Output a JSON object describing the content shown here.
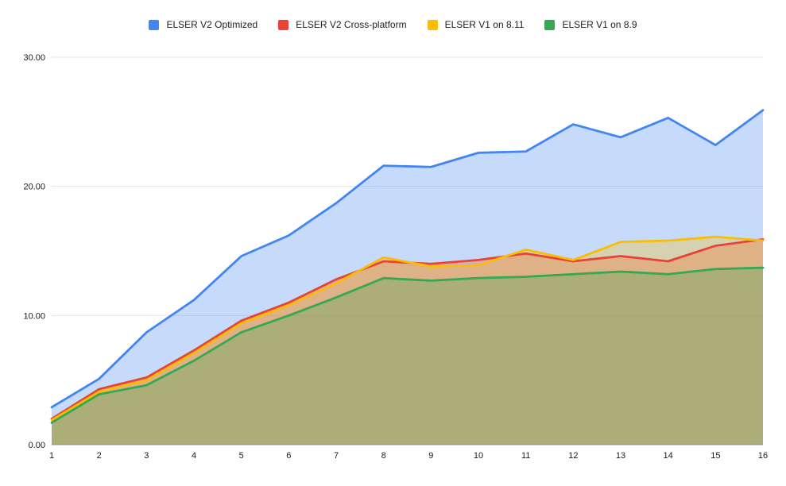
{
  "chart_data": {
    "type": "area",
    "title": "",
    "xlabel": "",
    "ylabel": "",
    "x": [
      1,
      2,
      3,
      4,
      5,
      6,
      7,
      8,
      9,
      10,
      11,
      12,
      13,
      14,
      15,
      16
    ],
    "series": [
      {
        "name": "ELSER V2 Optimized",
        "color": "#4285F4",
        "values": [
          2.9,
          5.1,
          8.7,
          11.2,
          14.6,
          16.2,
          18.7,
          21.6,
          21.5,
          22.6,
          22.7,
          24.8,
          23.8,
          25.3,
          23.2,
          25.9
        ]
      },
      {
        "name": "ELSER V2 Cross-platform",
        "color": "#EA4335",
        "values": [
          2.0,
          4.3,
          5.2,
          7.3,
          9.6,
          11.0,
          12.8,
          14.2,
          14.0,
          14.3,
          14.8,
          14.2,
          14.6,
          14.2,
          15.4,
          15.9
        ]
      },
      {
        "name": "ELSER V1 on 8.11",
        "color": "#FBBC04",
        "values": [
          1.9,
          4.1,
          5.0,
          7.1,
          9.4,
          10.8,
          12.5,
          14.5,
          13.8,
          13.9,
          15.1,
          14.3,
          15.7,
          15.8,
          16.1,
          15.8
        ]
      },
      {
        "name": "ELSER V1 on 8.9",
        "color": "#34A853",
        "values": [
          1.7,
          3.9,
          4.6,
          6.5,
          8.7,
          10.0,
          11.4,
          12.9,
          12.7,
          12.9,
          13.0,
          13.2,
          13.4,
          13.2,
          13.6,
          13.7
        ]
      }
    ],
    "y_ticks": [
      "0.00",
      "10.00",
      "20.00",
      "30.00"
    ],
    "ylim": [
      0,
      30
    ],
    "grid": true,
    "legend_position": "top",
    "fill_opacity": 0.3,
    "line_width": 2.8,
    "background": "#ffffff",
    "gridline_color": "#e6e6e6",
    "baseline_color": "#9e9e9e",
    "axis_text_color": "#1a1a1a"
  }
}
